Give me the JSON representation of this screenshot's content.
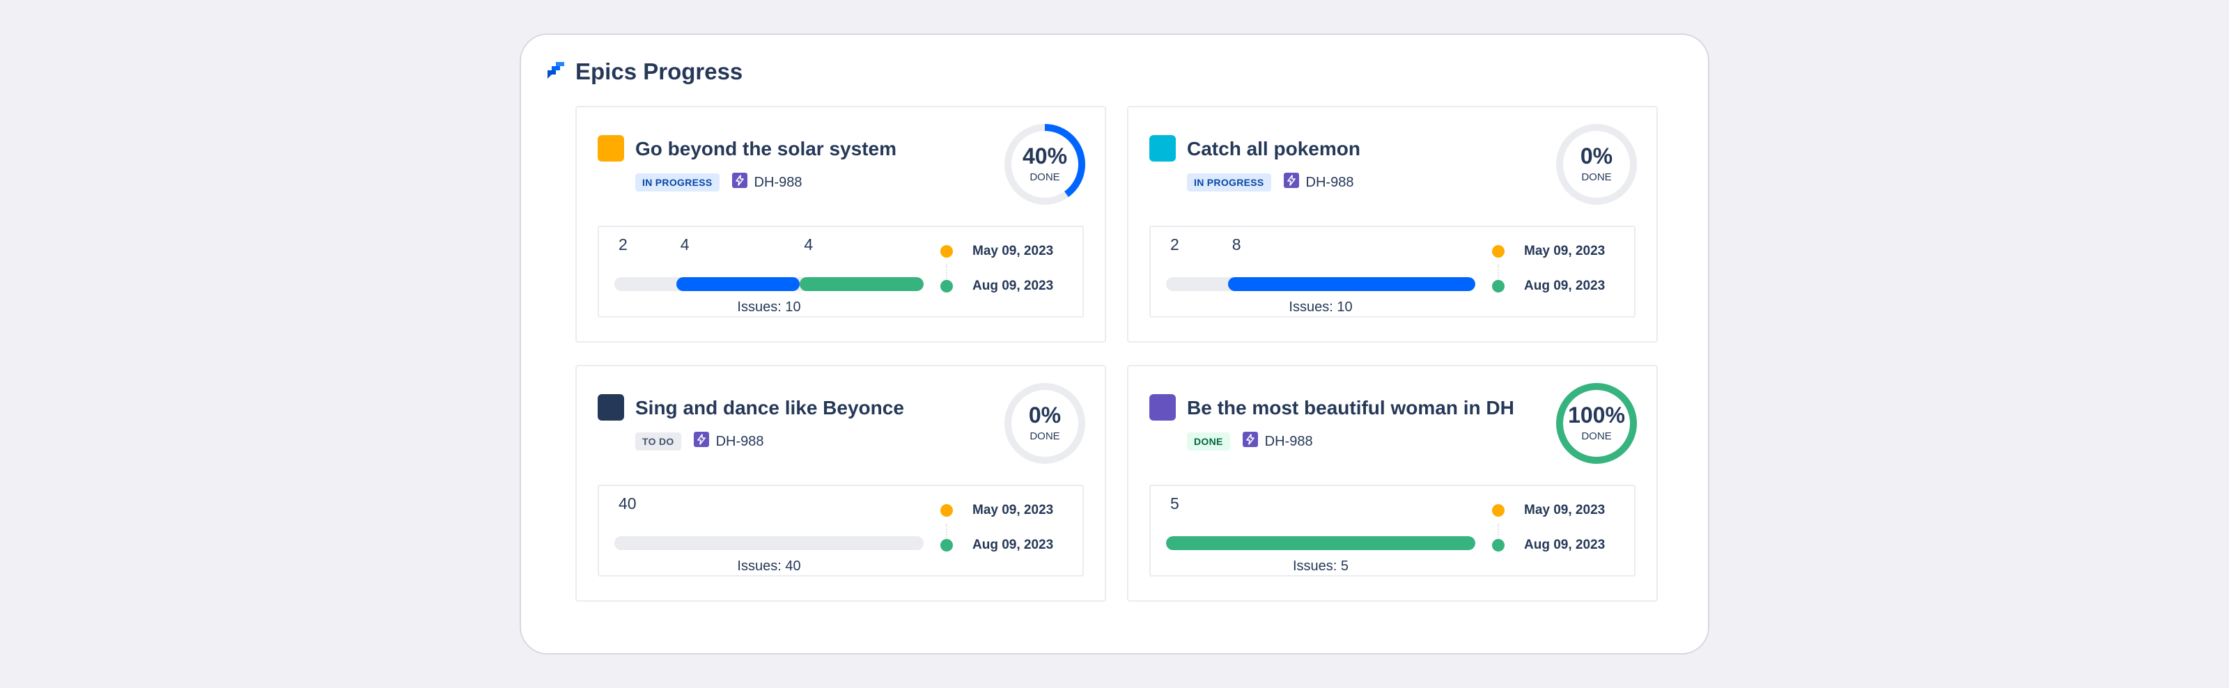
{
  "header": {
    "title": "Epics Progress",
    "icon": "jira-logo-icon"
  },
  "colors": {
    "blue": "#0065ff",
    "green": "#36b37e",
    "gray": "#ebecf0",
    "yellow": "#ffab00",
    "start_dot": "#ffab00",
    "end_dot": "#36b37e"
  },
  "epics": [
    {
      "title": "Go beyond the solar system",
      "color": "#ffab00",
      "status": "IN PROGRESS",
      "key": "DH-988",
      "percent": "40%",
      "percent_value": 0.4,
      "done_label": "DONE",
      "counts": [
        "2",
        "4",
        "4"
      ],
      "segments": [
        2,
        4,
        4
      ],
      "issues": "Issues: 10",
      "start_date": "May 09, 2023",
      "end_date": "Aug 09, 2023"
    },
    {
      "title": "Catch all pokemon",
      "color": "#00b8d9",
      "status": "IN PROGRESS",
      "key": "DH-988",
      "percent": "0%",
      "percent_value": 0,
      "done_label": "DONE",
      "counts": [
        "2",
        "8"
      ],
      "segments": [
        2,
        8,
        0
      ],
      "issues": "Issues: 10",
      "start_date": "May 09, 2023",
      "end_date": "Aug 09, 2023"
    },
    {
      "title": "Sing and dance like Beyonce",
      "color": "#253858",
      "status": "TO DO",
      "key": "DH-988",
      "percent": "0%",
      "percent_value": 0,
      "done_label": "DONE",
      "counts": [
        "40"
      ],
      "segments": [
        40,
        0,
        0
      ],
      "issues": "Issues: 40",
      "start_date": "May 09, 2023",
      "end_date": "Aug 09, 2023"
    },
    {
      "title": "Be the most beautiful woman in DH",
      "color": "#6554c0",
      "status": "DONE",
      "key": "DH-988",
      "percent": "100%",
      "percent_value": 1,
      "done_label": "DONE",
      "counts": [
        "5"
      ],
      "segments": [
        0,
        0,
        5
      ],
      "issues": "Issues: 5",
      "start_date": "May 09, 2023",
      "end_date": "Aug 09, 2023"
    }
  ]
}
